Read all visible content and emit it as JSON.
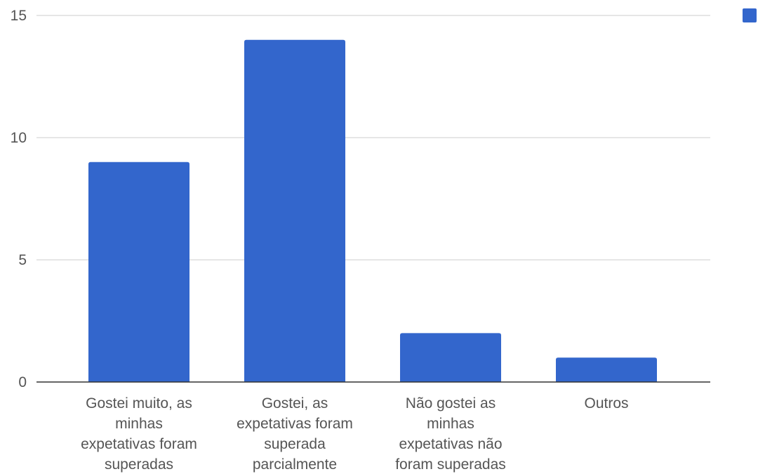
{
  "chart_data": {
    "type": "bar",
    "title": "",
    "xlabel": "",
    "ylabel": "",
    "categories": [
      [
        "Gostei muito, as",
        "minhas",
        "expetativas foram",
        "superadas"
      ],
      [
        "Gostei, as",
        "expetativas foram",
        "superada",
        "parcialmente"
      ],
      [
        "Não gostei as",
        "minhas",
        "expetativas não",
        "foram superadas"
      ],
      [
        "Outros"
      ]
    ],
    "series": [
      {
        "values": [
          9,
          14,
          2,
          1
        ]
      }
    ],
    "ylim": [
      0,
      15
    ],
    "yticks": [
      "0",
      "5",
      "10",
      "15"
    ],
    "grid": true,
    "legend": "top-right",
    "colors": {
      "bar": "#3366cc",
      "grid": "#cccccc",
      "axis": "#333333",
      "text": "#555555"
    }
  }
}
